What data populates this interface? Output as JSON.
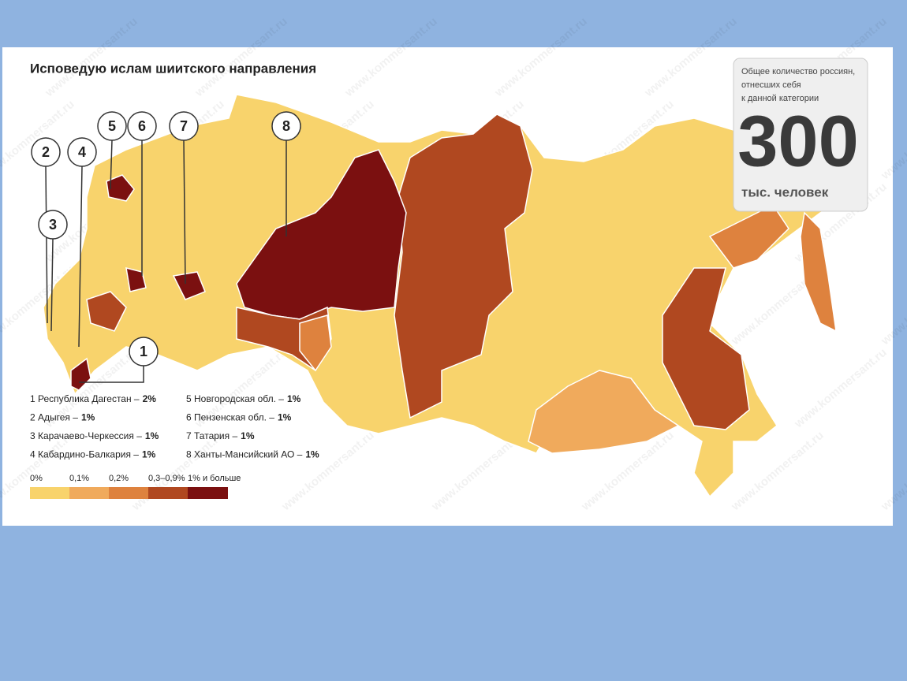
{
  "title": "Исповедую ислам шиитского направления",
  "stats": {
    "caption": [
      "Общее количество россиян,",
      "отнесших себя",
      "к данной категории"
    ],
    "number": "300",
    "unit": "тыс. человек"
  },
  "watermark": "www.kommersant.ru",
  "markers": [
    "5",
    "6",
    "7",
    "8",
    "2",
    "4",
    "3",
    "1"
  ],
  "legend": [
    {
      "label": "1 Республика Дагестан –",
      "share": "2%"
    },
    {
      "label": "2 Адыгея –",
      "share": "1%"
    },
    {
      "label": "3 Карачаево-Черкессия –",
      "share": "1%"
    },
    {
      "label": "4 Кабардино-Балкария –",
      "share": "1%"
    },
    {
      "label": "5 Новгородская обл. –",
      "share": "1%"
    },
    {
      "label": "6 Пензенская обл. –",
      "share": "1%"
    },
    {
      "label": "7 Татария –",
      "share": "1%"
    },
    {
      "label": "8 Ханты-Мансийский АО –",
      "share": "1%"
    }
  ],
  "scale": [
    {
      "label": "0%",
      "color": "#f8d36c"
    },
    {
      "label": "0,1%",
      "color": "#f0aa5c"
    },
    {
      "label": "0,2%",
      "color": "#de823e"
    },
    {
      "label": "0,3–0,9%",
      "color": "#b04820"
    },
    {
      "label": "1% и больше",
      "color": "#7b1010"
    }
  ]
}
